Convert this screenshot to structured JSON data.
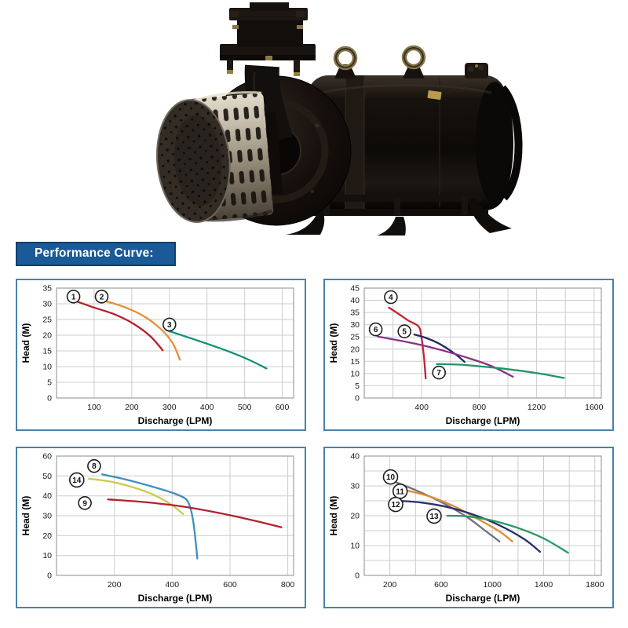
{
  "banner": {
    "label": "Performance Curve:",
    "bg": "#1a5a97",
    "text_color": "#ffffff"
  },
  "product_image": {
    "name": "openwell-submersible-pump-photo"
  },
  "chart_data": [
    {
      "type": "line",
      "xlabel": "Discharge (LPM)",
      "ylabel": "Head (M)",
      "xlim": [
        0,
        630
      ],
      "ylim": [
        0,
        35
      ],
      "xticks": [
        100,
        200,
        300,
        400,
        500,
        600
      ],
      "yticks": [
        0,
        5,
        10,
        15,
        20,
        25,
        30,
        35
      ],
      "xgrid": 100,
      "ygrid": 5,
      "grid": true,
      "legend": "circled numbers on curves",
      "series": [
        {
          "name": "1",
          "color": "#b5202c",
          "marker_at": [
            45,
            32.3
          ],
          "points": [
            [
              48,
              31
            ],
            [
              100,
              28.8
            ],
            [
              155,
              26.6
            ],
            [
              205,
              23.6
            ],
            [
              250,
              19.6
            ],
            [
              282,
              15.2
            ]
          ]
        },
        {
          "name": "2",
          "color": "#e59038",
          "marker_at": [
            120,
            32.3
          ],
          "points": [
            [
              118,
              31.2
            ],
            [
              175,
              29.2
            ],
            [
              230,
              26.2
            ],
            [
              275,
              22.2
            ],
            [
              308,
              17.6
            ],
            [
              328,
              12.2
            ]
          ]
        },
        {
          "name": "3",
          "color": "#178e76",
          "marker_at": [
            300,
            23.4
          ],
          "points": [
            [
              292,
              21.6
            ],
            [
              365,
              18.7
            ],
            [
              440,
              15.6
            ],
            [
              505,
              12.5
            ],
            [
              558,
              9.4
            ]
          ]
        }
      ]
    },
    {
      "type": "line",
      "xlabel": "Discharge (LPM)",
      "ylabel": "Head (M)",
      "xlim": [
        0,
        1650
      ],
      "ylim": [
        0,
        45
      ],
      "xticks": [
        400,
        800,
        1200,
        1600
      ],
      "yticks": [
        0,
        5,
        10,
        15,
        20,
        25,
        30,
        35,
        40,
        45
      ],
      "xgrid": 200,
      "ygrid": 5,
      "grid": true,
      "legend": "circled numbers on curves",
      "series": [
        {
          "name": "4",
          "color": "#c42332",
          "marker_at": [
            185,
            41.3
          ],
          "points": [
            [
              172,
              37
            ],
            [
              240,
              34.4
            ],
            [
              310,
              31.6
            ],
            [
              378,
              29.3
            ],
            [
              398,
              25
            ],
            [
              415,
              17
            ],
            [
              428,
              8
            ]
          ]
        },
        {
          "name": "5",
          "color": "#232a63",
          "marker_at": [
            280,
            27.3
          ],
          "points": [
            [
              348,
              26
            ],
            [
              430,
              24.6
            ],
            [
              510,
              22.6
            ],
            [
              590,
              19.8
            ],
            [
              655,
              17
            ],
            [
              698,
              14.8
            ]
          ]
        },
        {
          "name": "6",
          "color": "#8c2f88",
          "marker_at": [
            80,
            28.1
          ],
          "points": [
            [
              92,
              25.2
            ],
            [
              300,
              22.9
            ],
            [
              500,
              20.2
            ],
            [
              700,
              16.8
            ],
            [
              880,
              13.2
            ],
            [
              1035,
              8.7
            ]
          ]
        },
        {
          "name": "7",
          "color": "#1f9468",
          "marker_at": [
            520,
            10.4
          ],
          "points": [
            [
              505,
              13.9
            ],
            [
              650,
              13.7
            ],
            [
              800,
              13
            ],
            [
              1000,
              11.8
            ],
            [
              1200,
              10.2
            ],
            [
              1390,
              8.2
            ]
          ]
        }
      ]
    },
    {
      "type": "line",
      "xlabel": "Discharge (LPM)",
      "ylabel": "Head (M)",
      "xlim": [
        0,
        820
      ],
      "ylim": [
        0,
        60
      ],
      "xticks": [
        200,
        400,
        600,
        800
      ],
      "yticks": [
        0,
        10,
        20,
        30,
        40,
        50,
        60
      ],
      "xgrid": 200,
      "ygrid": 10,
      "grid": true,
      "legend": "circled numbers on curves",
      "series": [
        {
          "name": "8",
          "color": "#3e8fbe",
          "marker_at": [
            130,
            55
          ],
          "points": [
            [
              158,
              50.8
            ],
            [
              235,
              48.4
            ],
            [
              315,
              45.3
            ],
            [
              385,
              42.3
            ],
            [
              438,
              39.3
            ],
            [
              458,
              36
            ],
            [
              472,
              28
            ],
            [
              482,
              16
            ],
            [
              487,
              8.5
            ]
          ]
        },
        {
          "name": "14",
          "color": "#cdc94c",
          "marker_at": [
            70,
            48
          ],
          "points": [
            [
              112,
              48.6
            ],
            [
              185,
              47.2
            ],
            [
              262,
              44.4
            ],
            [
              332,
              40.8
            ],
            [
              395,
              35.8
            ],
            [
              438,
              30.8
            ]
          ]
        },
        {
          "name": "9",
          "color": "#b22230",
          "marker_at": [
            98,
            36.4
          ],
          "points": [
            [
              178,
              38.2
            ],
            [
              300,
              36.9
            ],
            [
              425,
              34.9
            ],
            [
              545,
              31.9
            ],
            [
              665,
              28.2
            ],
            [
              778,
              24.2
            ]
          ]
        }
      ]
    },
    {
      "type": "line",
      "xlabel": "Discharge (LPM)",
      "ylabel": "Head (M)",
      "xlim": [
        0,
        1850
      ],
      "ylim": [
        0,
        40
      ],
      "xticks": [
        200,
        600,
        1000,
        1400,
        1800
      ],
      "yticks": [
        0,
        10,
        20,
        30,
        40
      ],
      "xgrid": 200,
      "ygrid": 5,
      "grid": true,
      "legend": "circled numbers on curves",
      "series": [
        {
          "name": "10",
          "color": "#71717e",
          "marker_at": [
            205,
            33
          ],
          "points": [
            [
              225,
              31.6
            ],
            [
              400,
              28.6
            ],
            [
              600,
              24.6
            ],
            [
              800,
              19.6
            ],
            [
              950,
              14.8
            ],
            [
              1055,
              11.4
            ]
          ]
        },
        {
          "name": "11",
          "color": "#df8c33",
          "marker_at": [
            280,
            28.2
          ],
          "points": [
            [
              298,
              28.8
            ],
            [
              500,
              26.6
            ],
            [
              700,
              23.2
            ],
            [
              900,
              18.6
            ],
            [
              1060,
              14.6
            ],
            [
              1155,
              11.4
            ]
          ]
        },
        {
          "name": "12",
          "color": "#27306b",
          "marker_at": [
            245,
            23.8
          ],
          "points": [
            [
              278,
              25
            ],
            [
              450,
              24.4
            ],
            [
              650,
              22.9
            ],
            [
              850,
              20.4
            ],
            [
              1050,
              16.9
            ],
            [
              1250,
              12.1
            ],
            [
              1372,
              7.9
            ]
          ]
        },
        {
          "name": "13",
          "color": "#259a64",
          "marker_at": [
            545,
            19.9
          ],
          "points": [
            [
              648,
              20
            ],
            [
              800,
              19.8
            ],
            [
              1000,
              18.4
            ],
            [
              1200,
              15.9
            ],
            [
              1400,
              12.4
            ],
            [
              1590,
              7.6
            ]
          ]
        }
      ]
    }
  ]
}
